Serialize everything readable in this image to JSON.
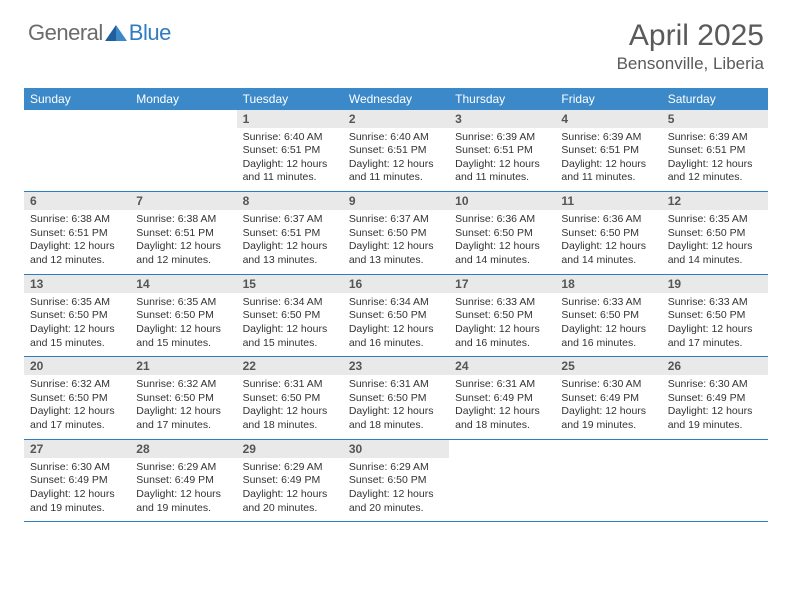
{
  "logo": {
    "text1": "General",
    "text2": "Blue"
  },
  "title": {
    "month": "April 2025",
    "location": "Bensonville, Liberia"
  },
  "colors": {
    "header_bg": "#3b89c9",
    "row_divider": "#2f7cc2",
    "daynum_bg": "#e9e9e9",
    "text_primary": "#333333",
    "text_muted": "#5a5a5a",
    "logo_general": "#6b6b6b",
    "logo_blue": "#2f7cc2",
    "page_bg": "#ffffff"
  },
  "weekdays": [
    "Sunday",
    "Monday",
    "Tuesday",
    "Wednesday",
    "Thursday",
    "Friday",
    "Saturday"
  ],
  "weeks": [
    [
      null,
      null,
      {
        "n": "1",
        "sunrise": "Sunrise: 6:40 AM",
        "sunset": "Sunset: 6:51 PM",
        "daylight": "Daylight: 12 hours and 11 minutes."
      },
      {
        "n": "2",
        "sunrise": "Sunrise: 6:40 AM",
        "sunset": "Sunset: 6:51 PM",
        "daylight": "Daylight: 12 hours and 11 minutes."
      },
      {
        "n": "3",
        "sunrise": "Sunrise: 6:39 AM",
        "sunset": "Sunset: 6:51 PM",
        "daylight": "Daylight: 12 hours and 11 minutes."
      },
      {
        "n": "4",
        "sunrise": "Sunrise: 6:39 AM",
        "sunset": "Sunset: 6:51 PM",
        "daylight": "Daylight: 12 hours and 11 minutes."
      },
      {
        "n": "5",
        "sunrise": "Sunrise: 6:39 AM",
        "sunset": "Sunset: 6:51 PM",
        "daylight": "Daylight: 12 hours and 12 minutes."
      }
    ],
    [
      {
        "n": "6",
        "sunrise": "Sunrise: 6:38 AM",
        "sunset": "Sunset: 6:51 PM",
        "daylight": "Daylight: 12 hours and 12 minutes."
      },
      {
        "n": "7",
        "sunrise": "Sunrise: 6:38 AM",
        "sunset": "Sunset: 6:51 PM",
        "daylight": "Daylight: 12 hours and 12 minutes."
      },
      {
        "n": "8",
        "sunrise": "Sunrise: 6:37 AM",
        "sunset": "Sunset: 6:51 PM",
        "daylight": "Daylight: 12 hours and 13 minutes."
      },
      {
        "n": "9",
        "sunrise": "Sunrise: 6:37 AM",
        "sunset": "Sunset: 6:50 PM",
        "daylight": "Daylight: 12 hours and 13 minutes."
      },
      {
        "n": "10",
        "sunrise": "Sunrise: 6:36 AM",
        "sunset": "Sunset: 6:50 PM",
        "daylight": "Daylight: 12 hours and 14 minutes."
      },
      {
        "n": "11",
        "sunrise": "Sunrise: 6:36 AM",
        "sunset": "Sunset: 6:50 PM",
        "daylight": "Daylight: 12 hours and 14 minutes."
      },
      {
        "n": "12",
        "sunrise": "Sunrise: 6:35 AM",
        "sunset": "Sunset: 6:50 PM",
        "daylight": "Daylight: 12 hours and 14 minutes."
      }
    ],
    [
      {
        "n": "13",
        "sunrise": "Sunrise: 6:35 AM",
        "sunset": "Sunset: 6:50 PM",
        "daylight": "Daylight: 12 hours and 15 minutes."
      },
      {
        "n": "14",
        "sunrise": "Sunrise: 6:35 AM",
        "sunset": "Sunset: 6:50 PM",
        "daylight": "Daylight: 12 hours and 15 minutes."
      },
      {
        "n": "15",
        "sunrise": "Sunrise: 6:34 AM",
        "sunset": "Sunset: 6:50 PM",
        "daylight": "Daylight: 12 hours and 15 minutes."
      },
      {
        "n": "16",
        "sunrise": "Sunrise: 6:34 AM",
        "sunset": "Sunset: 6:50 PM",
        "daylight": "Daylight: 12 hours and 16 minutes."
      },
      {
        "n": "17",
        "sunrise": "Sunrise: 6:33 AM",
        "sunset": "Sunset: 6:50 PM",
        "daylight": "Daylight: 12 hours and 16 minutes."
      },
      {
        "n": "18",
        "sunrise": "Sunrise: 6:33 AM",
        "sunset": "Sunset: 6:50 PM",
        "daylight": "Daylight: 12 hours and 16 minutes."
      },
      {
        "n": "19",
        "sunrise": "Sunrise: 6:33 AM",
        "sunset": "Sunset: 6:50 PM",
        "daylight": "Daylight: 12 hours and 17 minutes."
      }
    ],
    [
      {
        "n": "20",
        "sunrise": "Sunrise: 6:32 AM",
        "sunset": "Sunset: 6:50 PM",
        "daylight": "Daylight: 12 hours and 17 minutes."
      },
      {
        "n": "21",
        "sunrise": "Sunrise: 6:32 AM",
        "sunset": "Sunset: 6:50 PM",
        "daylight": "Daylight: 12 hours and 17 minutes."
      },
      {
        "n": "22",
        "sunrise": "Sunrise: 6:31 AM",
        "sunset": "Sunset: 6:50 PM",
        "daylight": "Daylight: 12 hours and 18 minutes."
      },
      {
        "n": "23",
        "sunrise": "Sunrise: 6:31 AM",
        "sunset": "Sunset: 6:50 PM",
        "daylight": "Daylight: 12 hours and 18 minutes."
      },
      {
        "n": "24",
        "sunrise": "Sunrise: 6:31 AM",
        "sunset": "Sunset: 6:49 PM",
        "daylight": "Daylight: 12 hours and 18 minutes."
      },
      {
        "n": "25",
        "sunrise": "Sunrise: 6:30 AM",
        "sunset": "Sunset: 6:49 PM",
        "daylight": "Daylight: 12 hours and 19 minutes."
      },
      {
        "n": "26",
        "sunrise": "Sunrise: 6:30 AM",
        "sunset": "Sunset: 6:49 PM",
        "daylight": "Daylight: 12 hours and 19 minutes."
      }
    ],
    [
      {
        "n": "27",
        "sunrise": "Sunrise: 6:30 AM",
        "sunset": "Sunset: 6:49 PM",
        "daylight": "Daylight: 12 hours and 19 minutes."
      },
      {
        "n": "28",
        "sunrise": "Sunrise: 6:29 AM",
        "sunset": "Sunset: 6:49 PM",
        "daylight": "Daylight: 12 hours and 19 minutes."
      },
      {
        "n": "29",
        "sunrise": "Sunrise: 6:29 AM",
        "sunset": "Sunset: 6:49 PM",
        "daylight": "Daylight: 12 hours and 20 minutes."
      },
      {
        "n": "30",
        "sunrise": "Sunrise: 6:29 AM",
        "sunset": "Sunset: 6:50 PM",
        "daylight": "Daylight: 12 hours and 20 minutes."
      },
      null,
      null,
      null
    ]
  ]
}
